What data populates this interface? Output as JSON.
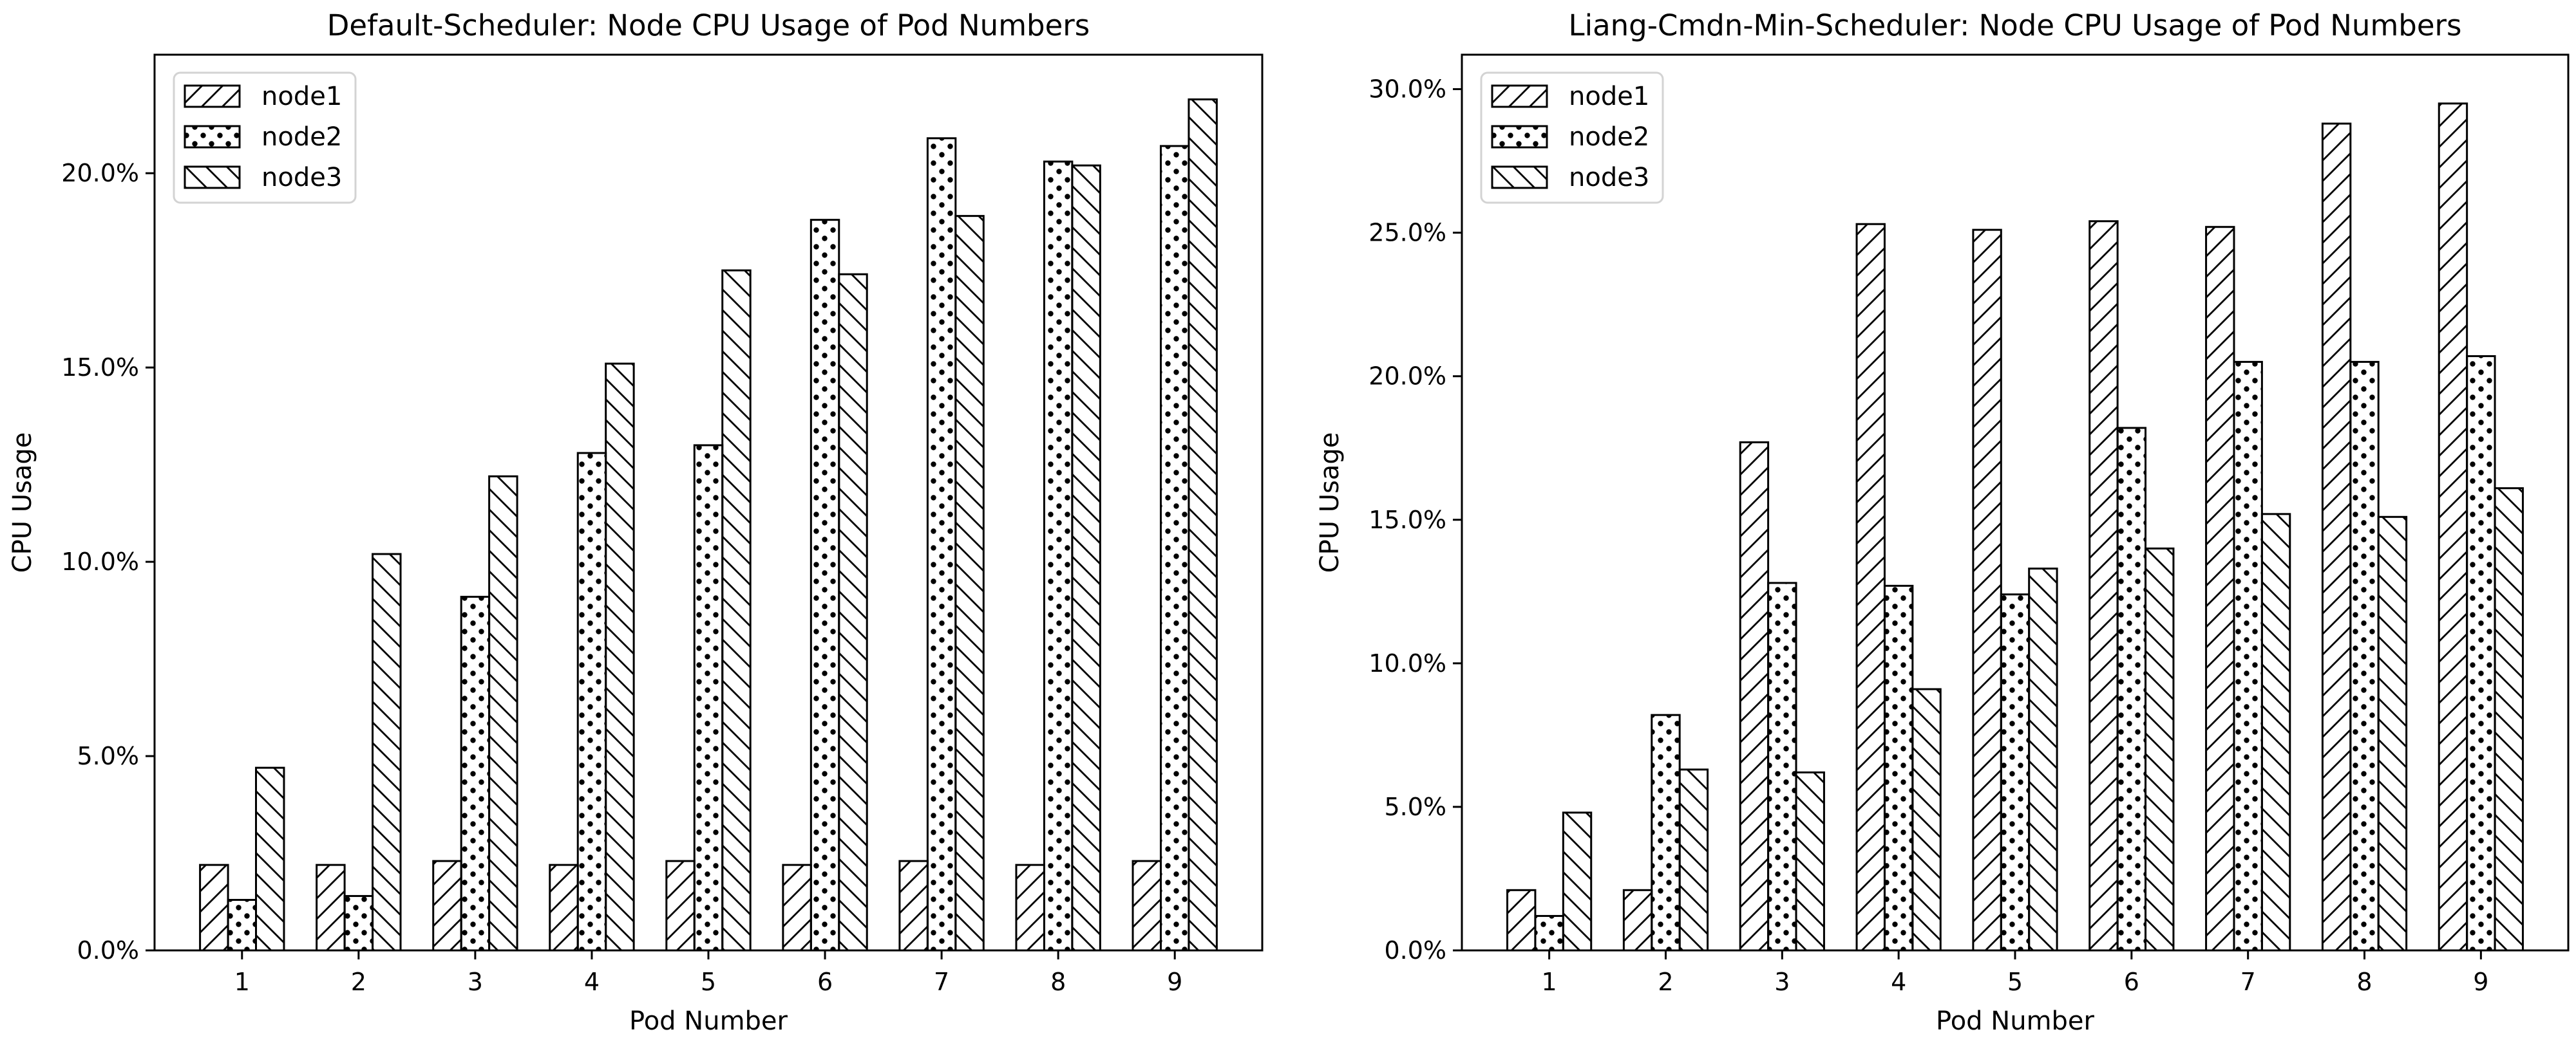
{
  "figure": {
    "background": "#ffffff",
    "colors": {
      "bar_fill": "#ffffff",
      "bar_edge": "#000000",
      "hatch": "#000000",
      "legend_border": "#d3d3d3",
      "text": "#000000"
    }
  },
  "chart_data": [
    {
      "type": "bar",
      "title": "Default-Scheduler: Node CPU Usage of Pod Numbers",
      "xlabel": "Pod Number",
      "ylabel": "CPU Usage",
      "categories": [
        "1",
        "2",
        "3",
        "4",
        "5",
        "6",
        "7",
        "8",
        "9"
      ],
      "series": [
        {
          "name": "node1",
          "hatch": "forward-diagonal",
          "values": [
            2.2,
            2.2,
            2.3,
            2.2,
            2.3,
            2.2,
            2.3,
            2.2,
            2.3
          ]
        },
        {
          "name": "node2",
          "hatch": "dots",
          "values": [
            1.3,
            1.4,
            9.1,
            12.8,
            13.0,
            18.8,
            20.9,
            20.3,
            20.7
          ]
        },
        {
          "name": "node3",
          "hatch": "back-diagonal",
          "values": [
            4.7,
            10.2,
            12.2,
            15.1,
            17.5,
            17.4,
            18.9,
            20.2,
            21.9
          ]
        }
      ],
      "ylim": [
        0,
        23.05
      ],
      "ytick_values": [
        0,
        5,
        10,
        15,
        20
      ],
      "ytick_labels": [
        "0.0%",
        "5.0%",
        "10.0%",
        "15.0%",
        "20.0%"
      ],
      "legend_position": "upper left",
      "grid": false
    },
    {
      "type": "bar",
      "title": "Liang-Cmdn-Min-Scheduler: Node CPU Usage of Pod Numbers",
      "xlabel": "Pod Number",
      "ylabel": "CPU Usage",
      "categories": [
        "1",
        "2",
        "3",
        "4",
        "5",
        "6",
        "7",
        "8",
        "9"
      ],
      "series": [
        {
          "name": "node1",
          "hatch": "forward-diagonal",
          "values": [
            2.1,
            2.1,
            17.7,
            25.3,
            25.1,
            25.4,
            25.2,
            28.8,
            29.5
          ]
        },
        {
          "name": "node2",
          "hatch": "dots",
          "values": [
            1.2,
            8.2,
            12.8,
            12.7,
            12.4,
            18.2,
            20.5,
            20.5,
            20.7
          ]
        },
        {
          "name": "node3",
          "hatch": "back-diagonal",
          "values": [
            4.8,
            6.3,
            6.2,
            9.1,
            13.3,
            14.0,
            15.2,
            15.1,
            16.1
          ]
        }
      ],
      "ylim": [
        0,
        31.2
      ],
      "ytick_values": [
        0,
        5,
        10,
        15,
        20,
        25,
        30
      ],
      "ytick_labels": [
        "0.0%",
        "5.0%",
        "10.0%",
        "15.0%",
        "20.0%",
        "25.0%",
        "30.0%"
      ],
      "legend_position": "upper left",
      "grid": false
    }
  ]
}
